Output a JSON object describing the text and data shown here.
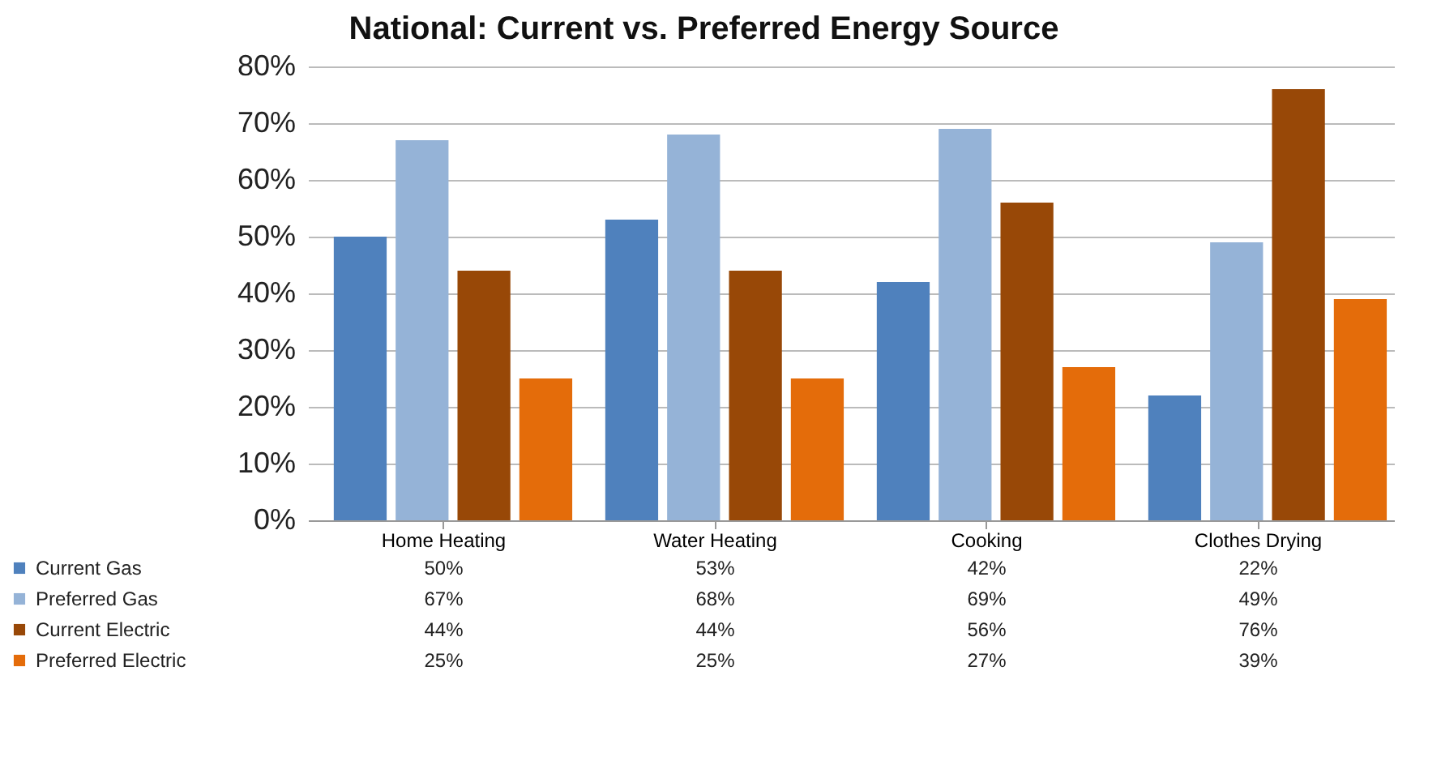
{
  "chart_data": {
    "type": "bar",
    "title": "National: Current vs. Preferred Energy Source",
    "categories": [
      "Home Heating",
      "Water Heating",
      "Cooking",
      "Clothes Drying"
    ],
    "series": [
      {
        "name": "Current Gas",
        "color": "#4f81bd",
        "values": [
          50,
          53,
          42,
          22
        ],
        "value_labels": [
          "50%",
          "53%",
          "42%",
          "22%"
        ]
      },
      {
        "name": "Preferred Gas",
        "color": "#95b3d7",
        "values": [
          67,
          68,
          69,
          49
        ],
        "value_labels": [
          "67%",
          "68%",
          "69%",
          "49%"
        ]
      },
      {
        "name": "Current Electric",
        "color": "#984807",
        "values": [
          44,
          44,
          56,
          76
        ],
        "value_labels": [
          "44%",
          "44%",
          "56%",
          "76%"
        ]
      },
      {
        "name": "Preferred Electric",
        "color": "#e46c0a",
        "values": [
          25,
          25,
          27,
          39
        ],
        "value_labels": [
          "25%",
          "25%",
          "27%",
          "39%"
        ]
      }
    ],
    "ylim": [
      0,
      80
    ],
    "yticks": [
      {
        "value": 0,
        "label": "0%"
      },
      {
        "value": 10,
        "label": "10%"
      },
      {
        "value": 20,
        "label": "20%"
      },
      {
        "value": 30,
        "label": "30%"
      },
      {
        "value": 40,
        "label": "40%"
      },
      {
        "value": 50,
        "label": "50%"
      },
      {
        "value": 60,
        "label": "60%"
      },
      {
        "value": 70,
        "label": "70%"
      },
      {
        "value": 80,
        "label": "80%"
      }
    ],
    "grid": "y",
    "legend": "bottom"
  }
}
